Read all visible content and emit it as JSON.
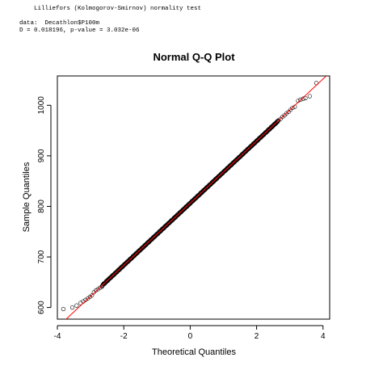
{
  "console": {
    "test_title": "Lilliefors (Kolmogorov-Smirnov) normality test",
    "data_line": "data:  Decathlon$P100m",
    "result_line": "D = 0.018196, p-value = 3.032e-06"
  },
  "chart_data": {
    "type": "scatter",
    "title": "Normal Q-Q Plot",
    "xlabel": "Theoretical Quantiles",
    "ylabel": "Sample Quantiles",
    "xlim": [
      -4.0,
      4.2
    ],
    "ylim": [
      577,
      1058
    ],
    "xticks": [
      -4,
      -2,
      0,
      2,
      4
    ],
    "yticks": [
      600,
      700,
      800,
      900,
      1000
    ],
    "x_tick_labels": [
      "-4",
      "-2",
      "0",
      "2",
      "4"
    ],
    "y_tick_labels": [
      "600",
      "700",
      "800",
      "900",
      "1000"
    ],
    "reference_line": {
      "intercept": 806.4,
      "slope": 61.4,
      "color": "#ff0000"
    },
    "point_color": "#000000",
    "grid": false,
    "legend": "none",
    "points": [
      {
        "x": -3.82,
        "y": 597
      },
      {
        "x": -3.55,
        "y": 600
      },
      {
        "x": -3.42,
        "y": 604
      },
      {
        "x": -3.3,
        "y": 609
      },
      {
        "x": -3.22,
        "y": 612
      },
      {
        "x": -3.15,
        "y": 615
      },
      {
        "x": -3.08,
        "y": 618
      },
      {
        "x": -3.02,
        "y": 621
      },
      {
        "x": -2.96,
        "y": 624
      },
      {
        "x": -2.9,
        "y": 630
      },
      {
        "x": -2.84,
        "y": 634
      },
      {
        "x": -2.78,
        "y": 636
      },
      {
        "x": -2.72,
        "y": 639
      },
      {
        "x": -2.66,
        "y": 641
      },
      {
        "x": 2.66,
        "y": 970
      },
      {
        "x": 2.72,
        "y": 973
      },
      {
        "x": 2.78,
        "y": 977
      },
      {
        "x": 2.84,
        "y": 980
      },
      {
        "x": 2.9,
        "y": 984
      },
      {
        "x": 2.96,
        "y": 987
      },
      {
        "x": 3.02,
        "y": 991
      },
      {
        "x": 3.08,
        "y": 995
      },
      {
        "x": 3.15,
        "y": 997
      },
      {
        "x": 3.25,
        "y": 1009
      },
      {
        "x": 3.32,
        "y": 1011
      },
      {
        "x": 3.4,
        "y": 1013
      },
      {
        "x": 3.47,
        "y": 1014
      },
      {
        "x": 3.6,
        "y": 1018
      },
      {
        "x": 3.8,
        "y": 1044
      }
    ],
    "dense_band": {
      "x_range": [
        -2.65,
        2.65
      ],
      "intercept": 806.4,
      "slope": 61.4
    }
  }
}
